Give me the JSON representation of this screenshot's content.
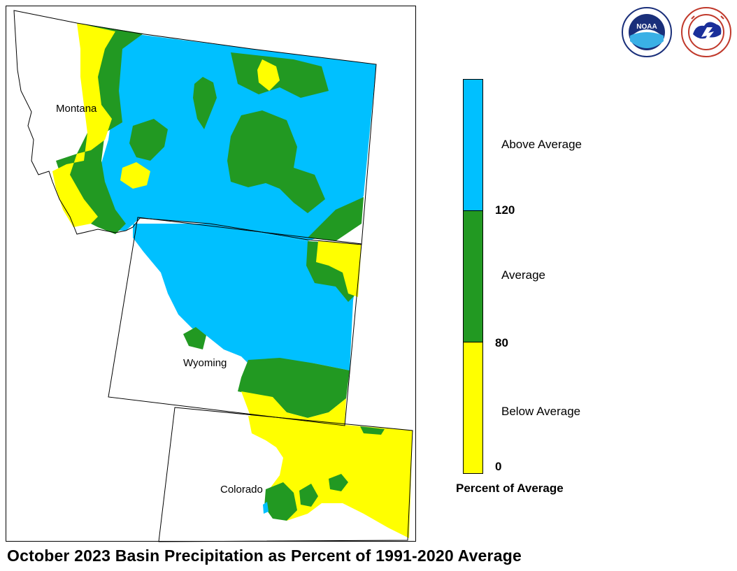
{
  "title": "October 2023 Basin Precipitation as Percent of 1991-2020 Average",
  "states": [
    {
      "name": "Montana"
    },
    {
      "name": "Wyoming"
    },
    {
      "name": "Colorado"
    }
  ],
  "legend": {
    "title": "Percent of Average",
    "categories": [
      {
        "label": "Above Average",
        "color": "#00c0ff",
        "range": [
          120,
          null
        ]
      },
      {
        "label": "Average",
        "color": "#229922",
        "range": [
          80,
          120
        ]
      },
      {
        "label": "Below Average",
        "color": "#ffff00",
        "range": [
          0,
          80
        ]
      }
    ],
    "ticks": [
      "120",
      "80",
      "0"
    ]
  },
  "logos": [
    {
      "name": "noaa-logo",
      "text": "NOAA",
      "ring_text": "NATIONAL OCEANIC AND ATMOSPHERIC ADMINISTRATION · U.S. DEPARTMENT OF COMMERCE"
    },
    {
      "name": "nws-logo",
      "ring_text": "NATIONAL WEATHER SERVICE"
    }
  ],
  "colors": {
    "above": "#00c0ff",
    "average": "#229922",
    "below": "#ffff00",
    "outline": "#000000"
  }
}
